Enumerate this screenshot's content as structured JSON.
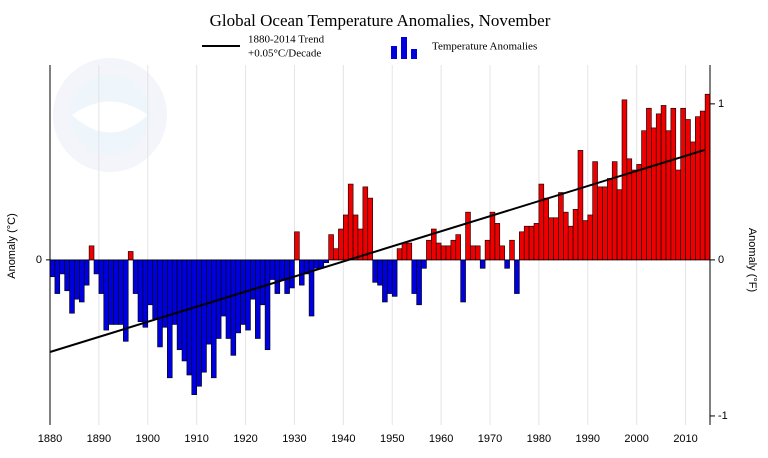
{
  "chart_data": {
    "type": "bar",
    "title": "Global Ocean Temperature Anomalies, November",
    "x": [
      1880,
      1881,
      1882,
      1883,
      1884,
      1885,
      1886,
      1887,
      1888,
      1889,
      1890,
      1891,
      1892,
      1893,
      1894,
      1895,
      1896,
      1897,
      1898,
      1899,
      1900,
      1901,
      1902,
      1903,
      1904,
      1905,
      1906,
      1907,
      1908,
      1909,
      1910,
      1911,
      1912,
      1913,
      1914,
      1915,
      1916,
      1917,
      1918,
      1919,
      1920,
      1921,
      1922,
      1923,
      1924,
      1925,
      1926,
      1927,
      1928,
      1929,
      1930,
      1931,
      1932,
      1933,
      1934,
      1935,
      1936,
      1937,
      1938,
      1939,
      1940,
      1941,
      1942,
      1943,
      1944,
      1945,
      1946,
      1947,
      1948,
      1949,
      1950,
      1951,
      1952,
      1953,
      1954,
      1955,
      1956,
      1957,
      1958,
      1959,
      1960,
      1961,
      1962,
      1963,
      1964,
      1965,
      1966,
      1967,
      1968,
      1969,
      1970,
      1971,
      1972,
      1973,
      1974,
      1975,
      1976,
      1977,
      1978,
      1979,
      1980,
      1981,
      1982,
      1983,
      1984,
      1985,
      1986,
      1987,
      1988,
      1989,
      1990,
      1991,
      1992,
      1993,
      1994,
      1995,
      1996,
      1997,
      1998,
      1999,
      2000,
      2001,
      2002,
      2003,
      2004,
      2005,
      2006,
      2007,
      2008,
      2009,
      2010,
      2011,
      2012,
      2013,
      2014
    ],
    "series": [
      {
        "name": "Temperature Anomalies",
        "type": "bar",
        "positive_color": "#ee0000",
        "negative_color": "#0000dd",
        "values": [
          -0.06,
          -0.12,
          -0.05,
          -0.11,
          -0.19,
          -0.14,
          -0.15,
          -0.09,
          0.05,
          -0.05,
          -0.12,
          -0.25,
          -0.23,
          -0.23,
          -0.23,
          -0.29,
          0.03,
          -0.12,
          -0.22,
          -0.24,
          -0.16,
          -0.21,
          -0.31,
          -0.24,
          -0.42,
          -0.23,
          -0.32,
          -0.36,
          -0.41,
          -0.48,
          -0.45,
          -0.4,
          -0.3,
          -0.42,
          -0.28,
          -0.2,
          -0.28,
          -0.34,
          -0.26,
          -0.23,
          -0.25,
          -0.14,
          -0.28,
          -0.16,
          -0.32,
          -0.07,
          -0.12,
          -0.07,
          -0.12,
          -0.1,
          0.1,
          -0.09,
          -0.05,
          -0.2,
          -0.03,
          -0.03,
          -0.01,
          0.09,
          0.04,
          0.11,
          0.16,
          0.27,
          0.16,
          0.11,
          0.26,
          0.22,
          -0.08,
          -0.09,
          -0.15,
          -0.12,
          -0.13,
          0.04,
          0.06,
          0.06,
          -0.12,
          -0.16,
          -0.03,
          0.07,
          0.11,
          0.06,
          0.05,
          0.05,
          0.07,
          0.09,
          -0.15,
          0.17,
          0.05,
          0.05,
          -0.03,
          0.07,
          0.17,
          0.13,
          0.05,
          -0.03,
          0.07,
          -0.12,
          0.1,
          0.12,
          0.12,
          0.13,
          0.27,
          0.22,
          0.15,
          0.15,
          0.24,
          0.17,
          0.12,
          0.18,
          0.39,
          0.14,
          0.16,
          0.35,
          0.26,
          0.26,
          0.29,
          0.35,
          0.25,
          0.57,
          0.36,
          0.32,
          0.34,
          0.46,
          0.54,
          0.47,
          0.52,
          0.55,
          0.46,
          0.54,
          0.32,
          0.54,
          0.5,
          0.42,
          0.51,
          0.53,
          0.59
        ]
      },
      {
        "name": "1880-2014 Trend",
        "name_line2": "+0.05°C/Decade",
        "type": "line",
        "color": "#000000",
        "x": [
          1880,
          2014
        ],
        "values": [
          -0.328,
          0.392
        ]
      }
    ],
    "ylabel": "Anomaly (°C)",
    "y2label": "Anomaly (°F)",
    "xlim": [
      1880,
      2015
    ],
    "xticks": [
      1880,
      1890,
      1900,
      1910,
      1920,
      1930,
      1940,
      1950,
      1960,
      1970,
      1980,
      1990,
      2000,
      2010
    ],
    "ylim": [
      -0.588,
      0.694
    ],
    "yticks": [
      0
    ],
    "y2lim": [
      -1.058,
      1.249
    ],
    "y2ticks": [
      -1,
      0,
      1
    ],
    "grid": "x"
  }
}
